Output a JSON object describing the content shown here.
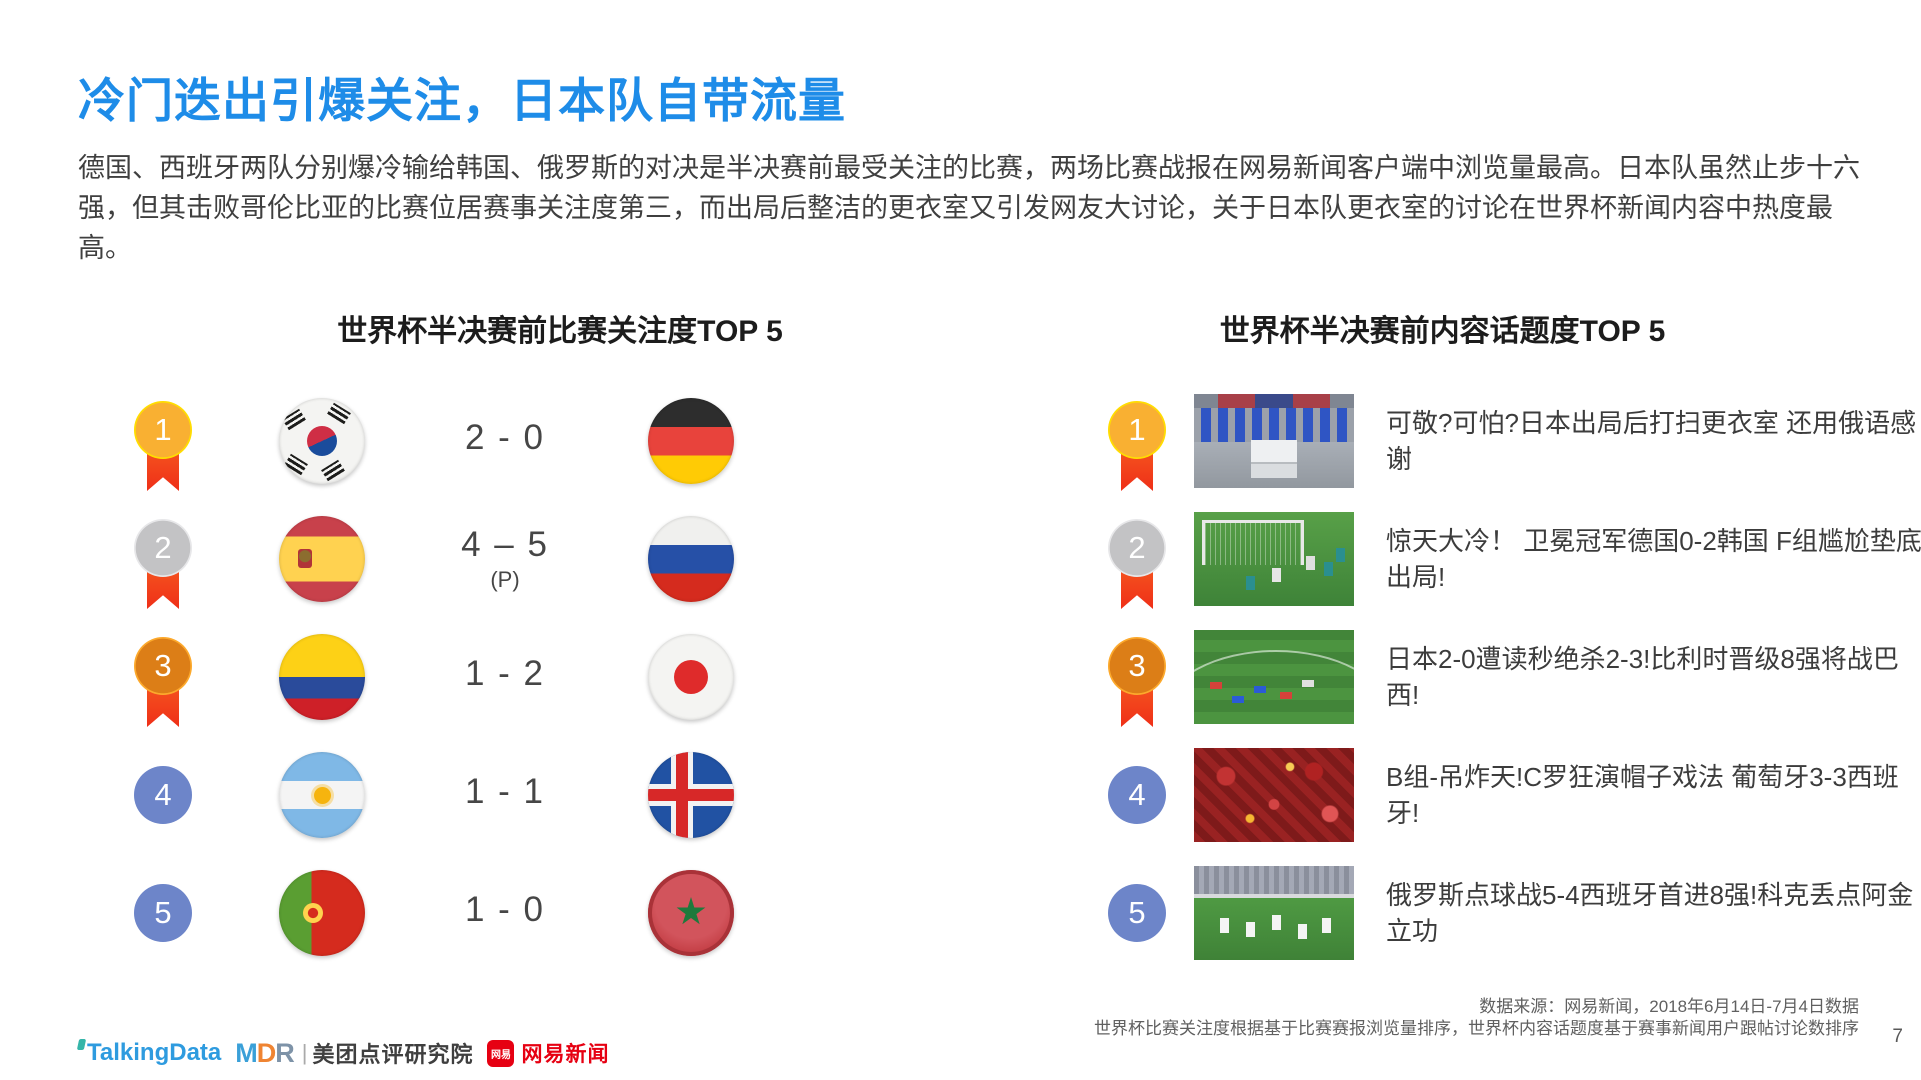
{
  "title": "冷门迭出引爆关注，日本队自带流量",
  "intro": "德国、西班牙两队分别爆冷输给韩国、俄罗斯的对决是半决赛前最受关注的比赛，两场比赛战报在网易新闻客户端中浏览量最高。日本队虽然止步十六强，但其击败哥伦比亚的比赛位居赛事关注度第三，而出局后整洁的更衣室又引发网友大讨论，关于日本队更衣室的讨论在世界杯新闻内容中热度最高。",
  "left_ranking": {
    "heading": "世界杯半决赛前比赛关注度TOP 5",
    "rows": [
      {
        "rank": "1",
        "medal": "gold",
        "home_team": "South Korea",
        "score": "2 - 0",
        "note": "",
        "away_team": "Germany"
      },
      {
        "rank": "2",
        "medal": "silver",
        "home_team": "Spain",
        "score": "4 – 5",
        "note": "(P)",
        "away_team": "Russia"
      },
      {
        "rank": "3",
        "medal": "bronze",
        "home_team": "Colombia",
        "score": "1 - 2",
        "note": "",
        "away_team": "Japan"
      },
      {
        "rank": "4",
        "medal": "plain",
        "home_team": "Argentina",
        "score": "1 - 1",
        "note": "",
        "away_team": "Iceland"
      },
      {
        "rank": "5",
        "medal": "plain",
        "home_team": "Portugal",
        "score": "1 - 0",
        "note": "",
        "away_team": "Morocco"
      }
    ]
  },
  "right_ranking": {
    "heading": "世界杯半决赛前内容话题度TOP 5",
    "rows": [
      {
        "rank": "1",
        "thumbnail": "japan-locker-room",
        "headline": "可敬?可怕?日本出局后打扫更衣室 还用俄语感谢"
      },
      {
        "rank": "2",
        "thumbnail": "germany-korea-match",
        "headline": "惊天大冷！ 卫冕冠军德国0-2韩国 F组尴尬垫底出局!"
      },
      {
        "rank": "3",
        "thumbnail": "japan-belgium-match",
        "headline": "日本2-0遭读秒绝杀2-3!比利时晋级8强将战巴西!"
      },
      {
        "rank": "4",
        "thumbnail": "portugal-spain-fans",
        "headline": "B组-吊炸天!C罗狂演帽子戏法 葡萄牙3-3西班牙!"
      },
      {
        "rank": "5",
        "thumbnail": "russia-spain-celebration",
        "headline": "俄罗斯点球战5-4西班牙首进8强!科克丢点阿金立功"
      }
    ]
  },
  "footer": {
    "source_line1": "数据来源：网易新闻，2018年6月14日-7月4日数据",
    "source_line2": "世界杯比赛关注度根据基于比赛赛报浏览量排序，世界杯内容话题度基于赛事新闻用户跟帖讨论数排序",
    "page_number": "7",
    "logos": {
      "talkingdata": "TalkingData",
      "mdr_m": "M",
      "mdr_d": "D",
      "mdr_r": "R",
      "separator": "|",
      "meituan": "美团点评研究院",
      "netease_badge": "网易",
      "netease": "网易新闻"
    }
  },
  "colors": {
    "title_blue": "#1E8CE8",
    "ribbon_red": "#F5451C",
    "gold_outer": "#FFDD00",
    "gold_inner": "#F9B032",
    "silver_outer": "#E7E7E9",
    "silver_inner": "#C3C3C5",
    "bronze_outer": "#FCA92C",
    "bronze_inner": "#DC7E17",
    "rank_blue": "#6D85C9",
    "netease_red": "#E60012"
  }
}
